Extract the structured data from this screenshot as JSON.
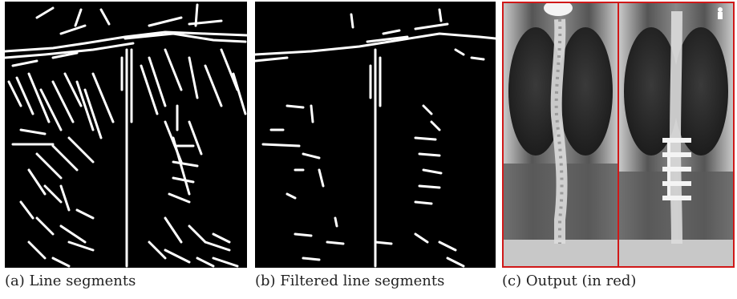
{
  "figure": {
    "panels": [
      {
        "id": "a",
        "caption": "(a) Line segments"
      },
      {
        "id": "b",
        "caption": "(b) Filtered line segments"
      },
      {
        "id": "c",
        "caption": "(c) Output (in red)"
      }
    ],
    "colors": {
      "background": "#000000",
      "segment": "#ffffff",
      "output_frame": "#d01818"
    }
  }
}
